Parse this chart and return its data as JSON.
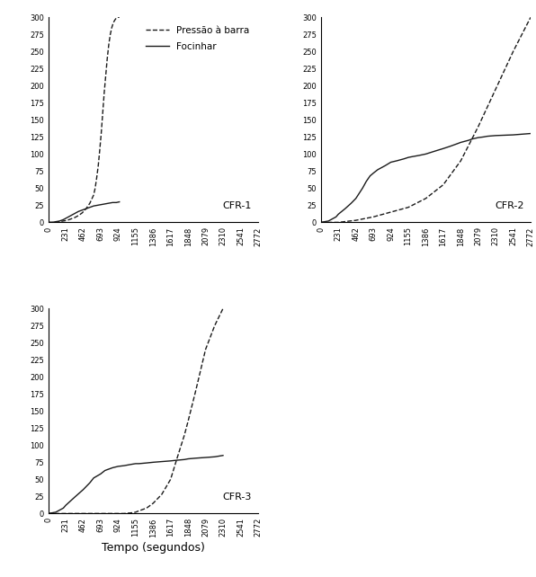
{
  "xticks": [
    0,
    231,
    462,
    693,
    924,
    1155,
    1386,
    1617,
    1848,
    2079,
    2310,
    2541,
    2772
  ],
  "ylim": [
    0,
    300
  ],
  "yticks": [
    0,
    25,
    50,
    75,
    100,
    125,
    150,
    175,
    200,
    225,
    250,
    275,
    300
  ],
  "xlim": [
    0,
    2772
  ],
  "legend_labels": [
    "Pressão à barra",
    "Focinhar"
  ],
  "xlabel": "Tempo (segundos)",
  "subplot_labels": [
    "CFR-1",
    "CFR-2",
    "CFR-3"
  ],
  "line_color": "#1a1a1a",
  "cfr1": {
    "bar_x": [
      0,
      50,
      100,
      150,
      200,
      250,
      300,
      350,
      400,
      450,
      500,
      550,
      600,
      620,
      640,
      660,
      680,
      700,
      720,
      740,
      760,
      780,
      800,
      820,
      840,
      860,
      880,
      900,
      920,
      940
    ],
    "bar_y": [
      0,
      0,
      0,
      1,
      2,
      3,
      5,
      7,
      10,
      14,
      20,
      28,
      40,
      50,
      65,
      82,
      105,
      130,
      160,
      190,
      215,
      240,
      260,
      275,
      285,
      292,
      296,
      299,
      300,
      300
    ],
    "nose_x": [
      0,
      50,
      100,
      150,
      200,
      250,
      300,
      350,
      400,
      450,
      500,
      550,
      600,
      650,
      700,
      750,
      800,
      850,
      900,
      940
    ],
    "nose_y": [
      0,
      0,
      1,
      2,
      4,
      7,
      10,
      13,
      16,
      18,
      20,
      22,
      24,
      25,
      26,
      27,
      28,
      29,
      29,
      30
    ]
  },
  "cfr2": {
    "bar_x": [
      0,
      231,
      462,
      693,
      924,
      1155,
      1386,
      1617,
      1848,
      2079,
      2310,
      2541,
      2772
    ],
    "bar_y": [
      0,
      0,
      3,
      8,
      15,
      22,
      35,
      55,
      90,
      140,
      195,
      250,
      300
    ],
    "nose_x": [
      0,
      100,
      200,
      231,
      320,
      400,
      462,
      550,
      600,
      650,
      693,
      750,
      800,
      850,
      924,
      1000,
      1100,
      1155,
      1200,
      1300,
      1386,
      1500,
      1617,
      1700,
      1800,
      1848,
      1950,
      2000,
      2079,
      2150,
      2200,
      2310,
      2541,
      2772
    ],
    "nose_y": [
      0,
      2,
      8,
      12,
      20,
      28,
      35,
      50,
      60,
      68,
      72,
      77,
      80,
      83,
      88,
      90,
      93,
      95,
      96,
      98,
      100,
      104,
      108,
      111,
      115,
      117,
      120,
      122,
      124,
      125,
      126,
      127,
      128,
      130
    ]
  },
  "cfr3": {
    "bar_x": [
      0,
      231,
      462,
      693,
      924,
      1000,
      1100,
      1155,
      1200,
      1300,
      1386,
      1500,
      1617,
      1700,
      1800,
      1848,
      1950,
      2079,
      2200,
      2310
    ],
    "bar_y": [
      0,
      0,
      0,
      0,
      0,
      0,
      1,
      2,
      4,
      8,
      15,
      28,
      50,
      80,
      115,
      135,
      180,
      240,
      275,
      300
    ],
    "nose_x": [
      0,
      100,
      200,
      231,
      350,
      462,
      550,
      600,
      693,
      750,
      800,
      850,
      924,
      1000,
      1100,
      1155,
      1200,
      1300,
      1386,
      1500,
      1617,
      1700,
      1800,
      1848,
      1950,
      2079,
      2200,
      2310
    ],
    "nose_y": [
      0,
      2,
      8,
      12,
      24,
      35,
      45,
      52,
      58,
      63,
      65,
      67,
      69,
      70,
      72,
      73,
      73,
      74,
      75,
      76,
      77,
      78,
      79,
      80,
      81,
      82,
      83,
      85
    ]
  }
}
